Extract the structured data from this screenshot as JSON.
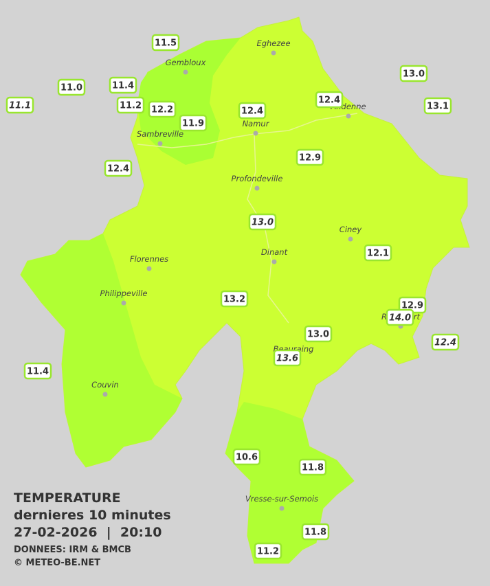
{
  "legend": {
    "title": "TEMPERATURE",
    "subtitle": "dernieres 10 minutes",
    "datetime": "27-02-2026  |  20:10",
    "source": "DONNEES: IRM & BMCB",
    "copyright": "© METEO-BE.NET"
  },
  "cities": [
    "Eghezee",
    "Gembloux",
    "Andenne",
    "Namur",
    "Sambreville",
    "Profondeville",
    "Ciney",
    "Dinant",
    "Florennes",
    "Philippeville",
    "Rochefort",
    "Beauraing",
    "Couvin",
    "Vresse-sur-Semois"
  ],
  "stations": [
    "11.5",
    "11.0",
    "11.4",
    "11.1",
    "11.2",
    "12.2",
    "11.9",
    "12.4",
    "12.4",
    "13.0",
    "13.1",
    "12.9",
    "12.4",
    "13.0",
    "12.1",
    "13.2",
    "12.9",
    "14.0",
    "13.0",
    "12.4",
    "13.6",
    "11.4",
    "10.6",
    "11.8",
    "11.8",
    "11.2"
  ]
}
